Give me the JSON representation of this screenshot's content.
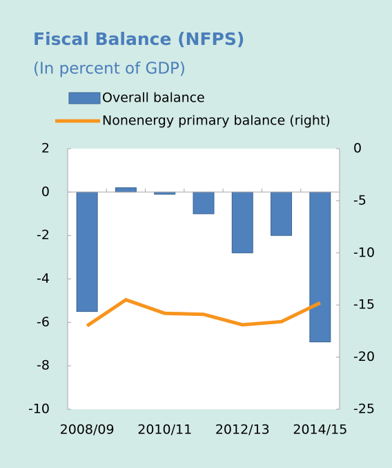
{
  "chart_data": {
    "type": "bar_line",
    "title": "Fiscal Balance (NFPS)",
    "subtitle": "(In percent of GDP)",
    "categories": [
      "2008/09",
      null,
      "2010/11",
      null,
      "2012/13",
      null,
      "2014/15"
    ],
    "series": [
      {
        "name": "Overall balance",
        "type": "bar",
        "color": "#4f81bd",
        "values": [
          -5.5,
          0.2,
          -0.1,
          -1.0,
          -2.8,
          -2.0,
          -6.9
        ]
      },
      {
        "name": "Nonenergy primary balance (right)",
        "type": "line",
        "axis": "y2",
        "color": "#f7941d",
        "values": [
          -17.0,
          -14.5,
          -15.8,
          -15.9,
          -16.9,
          -16.6,
          -14.8
        ]
      }
    ],
    "ylim": [
      -10,
      2
    ],
    "yticks": [
      -10,
      -8,
      -6,
      -4,
      -2,
      0,
      2
    ],
    "y2lim": [
      -25,
      0
    ],
    "y2ticks": [
      -25,
      -20,
      -15,
      -10,
      -5,
      0
    ]
  }
}
